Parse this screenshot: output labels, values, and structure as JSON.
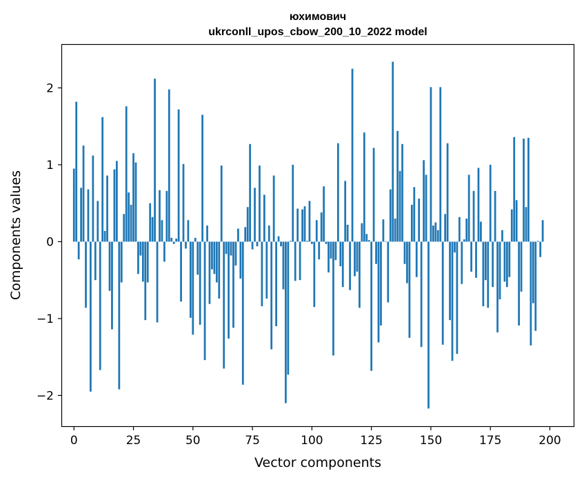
{
  "chart_data": {
    "type": "bar",
    "title_line1": "юхимович",
    "title_line2": "ukrconll_upos_cbow_200_10_2022 model",
    "xlabel": "Vector components",
    "ylabel": "Components values",
    "xlim": [
      -5,
      210
    ],
    "ylim": [
      -2.4,
      2.56
    ],
    "xticks": [
      0,
      25,
      50,
      75,
      100,
      125,
      150,
      175,
      200
    ],
    "xtick_labels": [
      "0",
      "25",
      "50",
      "75",
      "100",
      "125",
      "150",
      "175",
      "200"
    ],
    "yticks": [
      -2,
      -1,
      0,
      1,
      2
    ],
    "ytick_labels": [
      "−2",
      "−1",
      "0",
      "1",
      "2"
    ],
    "grid": false,
    "bar_color": "#1f77b4",
    "values": [
      0.95,
      1.82,
      -0.23,
      0.7,
      1.25,
      -0.86,
      0.68,
      -1.95,
      1.12,
      -0.5,
      0.53,
      -1.67,
      1.62,
      0.14,
      0.86,
      -0.64,
      -1.14,
      0.94,
      1.05,
      -1.92,
      -0.53,
      0.36,
      1.76,
      0.64,
      0.48,
      1.15,
      1.03,
      -0.42,
      -0.18,
      -0.52,
      -1.02,
      -0.53,
      0.5,
      0.32,
      2.12,
      -1.05,
      0.67,
      0.28,
      -0.26,
      0.66,
      1.98,
      0.05,
      -0.03,
      0.04,
      1.72,
      -0.78,
      1.01,
      -0.09,
      0.28,
      -0.99,
      -1.21,
      0.05,
      -0.43,
      -1.08,
      1.65,
      -1.54,
      0.21,
      -0.81,
      -0.36,
      -0.42,
      -0.53,
      -0.74,
      0.99,
      -1.65,
      -0.16,
      -1.26,
      -0.18,
      -1.12,
      -0.31,
      0.17,
      -0.48,
      -1.86,
      0.19,
      0.45,
      1.27,
      -0.1,
      0.7,
      -0.06,
      0.99,
      -0.84,
      0.61,
      -0.74,
      0.21,
      -1.4,
      0.86,
      -1.1,
      0.07,
      -0.06,
      -0.62,
      -2.1,
      -1.73,
      0.01,
      1.0,
      -0.51,
      0.43,
      -0.5,
      0.42,
      0.46,
      0.01,
      0.53,
      -0.03,
      -0.85,
      0.28,
      -0.23,
      0.38,
      0.72,
      -0.03,
      -0.4,
      -0.22,
      -1.48,
      -0.24,
      1.28,
      -0.32,
      -0.59,
      0.79,
      0.22,
      -0.63,
      2.25,
      -0.45,
      -0.39,
      -0.86,
      0.24,
      1.42,
      0.1,
      0.02,
      -1.68,
      1.22,
      -0.29,
      -1.31,
      -1.09,
      0.29,
      0.0,
      -0.79,
      0.68,
      2.34,
      0.3,
      1.44,
      0.92,
      1.27,
      -0.29,
      -0.54,
      -1.25,
      0.48,
      0.71,
      -0.46,
      0.56,
      -1.37,
      1.06,
      0.87,
      -2.17,
      2.01,
      0.21,
      0.25,
      0.15,
      2.01,
      -1.34,
      0.36,
      1.28,
      -1.02,
      -1.55,
      -0.14,
      -1.46,
      0.32,
      -0.55,
      0.03,
      0.3,
      0.87,
      -0.39,
      0.66,
      -0.47,
      0.96,
      0.26,
      -0.84,
      -0.5,
      -0.86,
      1.0,
      -0.59,
      0.66,
      -1.18,
      -0.75,
      0.15,
      -0.52,
      -0.59,
      -0.46,
      0.42,
      1.36,
      0.54,
      -1.09,
      -0.65,
      1.34,
      0.45,
      1.35,
      -1.35,
      -0.8,
      -1.16,
      0.01,
      -0.2,
      0.28
    ]
  }
}
